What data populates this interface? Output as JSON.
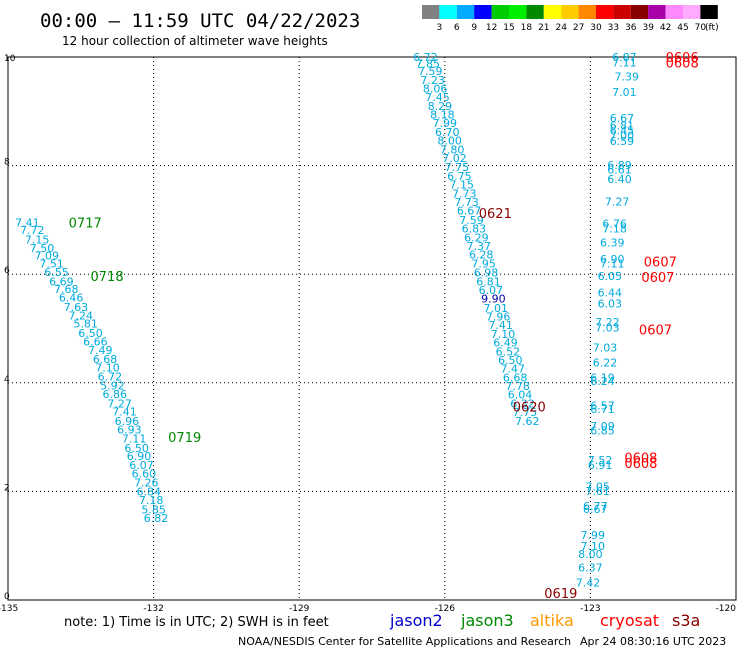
{
  "header": {
    "title": "00:00 – 11:59 UTC 04/22/2023",
    "subtitle": "12 hour collection of altimeter wave heights"
  },
  "legend_scale": {
    "unit": "(ft)",
    "labels": [
      "3",
      "6",
      "9",
      "12",
      "15",
      "18",
      "21",
      "24",
      "27",
      "30",
      "33",
      "36",
      "39",
      "42",
      "45",
      "70"
    ],
    "colors": [
      "#808080",
      "#00ffff",
      "#00aaff",
      "#0000ff",
      "#00cc00",
      "#00ee00",
      "#008800",
      "#ffff00",
      "#ffcc00",
      "#ff8800",
      "#ff0000",
      "#cc0000",
      "#880000",
      "#aa00aa",
      "#ff88ff",
      "#ffaaff",
      "#000000"
    ]
  },
  "chart_data": {
    "type": "scatter",
    "title": "00:00 – 11:59 UTC 04/22/2023",
    "subtitle": "12 hour collection of altimeter wave heights",
    "xlabel": "",
    "ylabel": "",
    "xlim": [
      -135,
      -120
    ],
    "ylim": [
      0,
      10
    ],
    "xticks": [
      "-135",
      "-132",
      "-129",
      "-126",
      "-123",
      "-120"
    ],
    "yticks": [
      "0",
      "2",
      "4",
      "6",
      "8",
      "10"
    ],
    "grid": true,
    "tracks": [
      {
        "color": "#00aadd",
        "points": [
          [
            -134.6,
            6.95,
            "7.41"
          ],
          [
            -134.5,
            6.81,
            "7.72"
          ],
          [
            -134.4,
            6.64,
            "7.15"
          ],
          [
            -134.3,
            6.48,
            "7.50"
          ],
          [
            -134.2,
            6.34,
            "7.09"
          ],
          [
            -134.1,
            6.2,
            "7.51"
          ],
          [
            -134.0,
            6.04,
            "6.55"
          ],
          [
            -133.9,
            5.87,
            "6.69"
          ],
          [
            -133.8,
            5.73,
            "7.68"
          ],
          [
            -133.7,
            5.57,
            "6.46"
          ],
          [
            -133.6,
            5.4,
            "7.63"
          ],
          [
            -133.5,
            5.24,
            "7.24"
          ],
          [
            -133.4,
            5.09,
            "5.81"
          ],
          [
            -133.3,
            4.92,
            "6.50"
          ],
          [
            -133.2,
            4.76,
            "6.66"
          ],
          [
            -133.1,
            4.6,
            "7.49"
          ],
          [
            -133.0,
            4.44,
            "6.68"
          ],
          [
            -132.95,
            4.28,
            "7.10"
          ],
          [
            -132.9,
            4.12,
            "6.72"
          ],
          [
            -132.85,
            3.95,
            "5.92"
          ],
          [
            -132.8,
            3.79,
            "6.86"
          ],
          [
            -132.7,
            3.62,
            "7.27"
          ],
          [
            -132.6,
            3.47,
            "7.41"
          ],
          [
            -132.55,
            3.3,
            "6.96"
          ],
          [
            -132.5,
            3.14,
            "6.93"
          ],
          [
            -132.4,
            2.97,
            "7.11"
          ],
          [
            -132.35,
            2.8,
            "6.50"
          ],
          [
            -132.3,
            2.65,
            "6.90"
          ],
          [
            -132.25,
            2.49,
            "6.07"
          ],
          [
            -132.2,
            2.33,
            "6.60"
          ],
          [
            -132.15,
            2.16,
            "7.26"
          ],
          [
            -132.1,
            2.0,
            "6.84"
          ],
          [
            -132.05,
            1.84,
            "7.18"
          ],
          [
            -132.0,
            1.67,
            "5.85"
          ],
          [
            -131.95,
            1.51,
            "6.82"
          ]
        ]
      },
      {
        "color": "#00aadd",
        "points": [
          [
            -126.4,
            10.0,
            "6.72"
          ],
          [
            -126.35,
            9.88,
            "7.85"
          ],
          [
            -126.3,
            9.74,
            "7.59"
          ],
          [
            -126.25,
            9.58,
            "7.23"
          ],
          [
            -126.2,
            9.42,
            "8.06"
          ],
          [
            -126.15,
            9.26,
            "7.45"
          ],
          [
            -126.1,
            9.1,
            "8.29"
          ],
          [
            -126.05,
            8.94,
            "8.18"
          ],
          [
            -126.0,
            8.78,
            "7.99"
          ],
          [
            -125.95,
            8.62,
            "6.70"
          ],
          [
            -125.9,
            8.46,
            "8.00"
          ],
          [
            -125.85,
            8.3,
            "7.80"
          ],
          [
            -125.8,
            8.14,
            "7.02"
          ],
          [
            -125.75,
            7.97,
            "7.75"
          ],
          [
            -125.7,
            7.81,
            "6.75"
          ],
          [
            -125.65,
            7.65,
            "7.15"
          ],
          [
            -125.6,
            7.49,
            "7.73"
          ],
          [
            -125.55,
            7.33,
            "7.73"
          ],
          [
            -125.5,
            7.17,
            "6.67"
          ],
          [
            -125.45,
            7.0,
            "7.59"
          ],
          [
            -125.4,
            6.84,
            "6.83"
          ],
          [
            -125.35,
            6.68,
            "6.29"
          ],
          [
            -125.3,
            6.52,
            "7.37"
          ],
          [
            -125.25,
            6.36,
            "6.28"
          ],
          [
            -125.2,
            6.2,
            "7.95"
          ],
          [
            -125.15,
            6.03,
            "6.98"
          ],
          [
            -125.1,
            5.87,
            "6.81"
          ],
          [
            -125.05,
            5.71,
            "6.07"
          ],
          [
            -124.95,
            5.38,
            "7.01"
          ],
          [
            -124.9,
            5.22,
            "7.96"
          ],
          [
            -124.85,
            5.06,
            "7.41"
          ],
          [
            -124.8,
            4.9,
            "7.10"
          ],
          [
            -124.75,
            4.74,
            "6.49"
          ],
          [
            -124.7,
            4.58,
            "6.52"
          ],
          [
            -124.65,
            4.42,
            "6.50"
          ],
          [
            -124.6,
            4.26,
            "7.47"
          ],
          [
            -124.55,
            4.1,
            "6.68"
          ],
          [
            -124.5,
            3.94,
            "7.78"
          ],
          [
            -124.45,
            3.78,
            "6.04"
          ],
          [
            -124.4,
            3.62,
            "6.32"
          ],
          [
            -124.35,
            3.46,
            "7.75"
          ],
          [
            -124.3,
            3.3,
            "7.62"
          ]
        ]
      },
      {
        "color": "#0000aa",
        "points": [
          [
            -125.0,
            5.55,
            "9.90"
          ]
        ]
      },
      {
        "color": "#00aadd",
        "points": [
          [
            -122.3,
            10.0,
            "6.87"
          ],
          [
            -122.3,
            9.9,
            "7.11"
          ],
          [
            -122.25,
            9.64,
            "7.39"
          ],
          [
            -122.3,
            9.36,
            "7.01"
          ],
          [
            -122.35,
            8.88,
            "6.67"
          ],
          [
            -122.35,
            8.74,
            "6.81"
          ],
          [
            -122.35,
            8.65,
            "6.45"
          ],
          [
            -122.35,
            8.55,
            "7.00"
          ],
          [
            -122.35,
            8.45,
            "6.59"
          ],
          [
            -122.4,
            8.01,
            "6.89"
          ],
          [
            -122.4,
            7.93,
            "6.61"
          ],
          [
            -122.4,
            7.75,
            "6.40"
          ],
          [
            -122.45,
            7.34,
            "7.27"
          ],
          [
            -122.5,
            6.93,
            "6.76"
          ],
          [
            -122.5,
            6.84,
            "7.18"
          ],
          [
            -122.55,
            6.58,
            "6.39"
          ],
          [
            -122.55,
            6.28,
            "6.90"
          ],
          [
            -122.55,
            6.2,
            "7.11"
          ],
          [
            -122.6,
            5.97,
            "6.05"
          ],
          [
            -122.6,
            5.66,
            "6.44"
          ],
          [
            -122.6,
            5.46,
            "6.03"
          ],
          [
            -122.65,
            5.12,
            "7.22"
          ],
          [
            -122.65,
            5.02,
            "7.03"
          ],
          [
            -122.7,
            4.65,
            "7.03"
          ],
          [
            -122.7,
            4.37,
            "6.22"
          ],
          [
            -122.75,
            4.1,
            "6.19"
          ],
          [
            -122.75,
            4.03,
            "6.24"
          ],
          [
            -122.75,
            3.58,
            "6.57"
          ],
          [
            -122.75,
            3.52,
            "6.71"
          ],
          [
            -122.75,
            3.2,
            "7.09"
          ],
          [
            -122.75,
            3.12,
            "6.85"
          ],
          [
            -122.8,
            2.58,
            "7.52"
          ],
          [
            -122.8,
            2.49,
            "6.91"
          ],
          [
            -122.85,
            2.09,
            "7.05"
          ],
          [
            -122.85,
            2.01,
            "7.61"
          ],
          [
            -122.9,
            1.73,
            "6.77"
          ],
          [
            -122.9,
            1.68,
            "6.67"
          ],
          [
            -122.95,
            1.2,
            "7.99"
          ],
          [
            -122.95,
            0.99,
            "7.10"
          ],
          [
            -123.0,
            0.85,
            "8.00"
          ],
          [
            -123.0,
            0.6,
            "6.37"
          ],
          [
            -123.05,
            0.32,
            "7.42"
          ]
        ]
      }
    ],
    "pass_labels": [
      {
        "text": "0717",
        "x": -133.75,
        "y": 6.95,
        "color": "#008800"
      },
      {
        "text": "0718",
        "x": -133.3,
        "y": 5.97,
        "color": "#008800"
      },
      {
        "text": "0719",
        "x": -131.7,
        "y": 3.0,
        "color": "#008800"
      },
      {
        "text": "0621",
        "x": -125.3,
        "y": 7.13,
        "color": "#880000"
      },
      {
        "text": "0620",
        "x": -124.6,
        "y": 3.56,
        "color": "#880000"
      },
      {
        "text": "0619",
        "x": -123.95,
        "y": 0.13,
        "color": "#880000"
      },
      {
        "text": "0606",
        "x": -121.45,
        "y": 10.0,
        "color": "#ff0000"
      },
      {
        "text": "0608",
        "x": -121.45,
        "y": 9.9,
        "color": "#ff0000"
      },
      {
        "text": "0607",
        "x": -121.9,
        "y": 6.23,
        "color": "#ff0000"
      },
      {
        "text": "0607",
        "x": -121.95,
        "y": 5.95,
        "color": "#ff0000"
      },
      {
        "text": "0607",
        "x": -122.0,
        "y": 4.98,
        "color": "#ff0000"
      },
      {
        "text": "0608",
        "x": -122.3,
        "y": 2.62,
        "color": "#ff0000"
      },
      {
        "text": "0608",
        "x": -122.3,
        "y": 2.52,
        "color": "#ff0000"
      }
    ]
  },
  "bottom": {
    "note": "note: 1) Time is in UTC; 2) SWH is in feet",
    "satellites": [
      {
        "name": "jason2",
        "color": "#0000cc"
      },
      {
        "name": "jason3",
        "color": "#008800"
      },
      {
        "name": "altika",
        "color": "#ff9900"
      },
      {
        "name": "cryosat",
        "color": "#ff0000"
      },
      {
        "name": "s3a",
        "color": "#880000"
      }
    ],
    "credit": "NOAA/NESDIS Center for Satellite Applications and Research",
    "timestamp": "Apr 24 08:30:16 UTC 2023"
  }
}
